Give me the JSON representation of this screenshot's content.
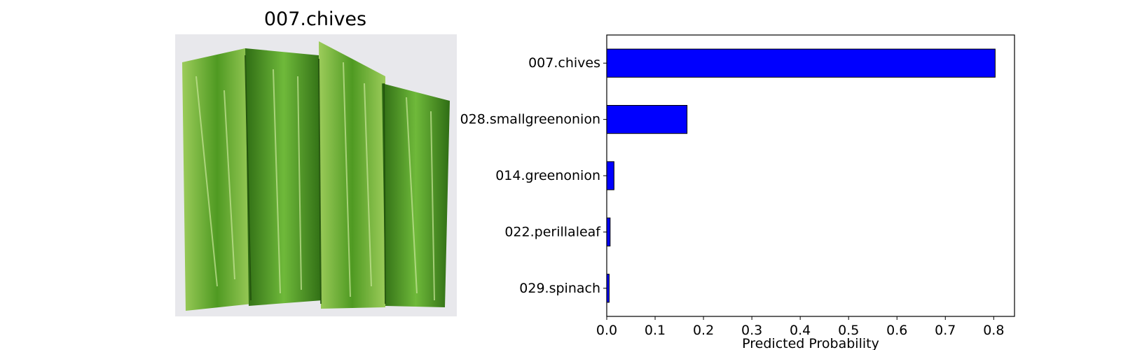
{
  "image_panel": {
    "title": "007.chives",
    "image": "chopped-chives-photo"
  },
  "chart_data": {
    "type": "bar",
    "orientation": "horizontal",
    "categories": [
      "007.chives",
      "028.smallgreenonion",
      "014.greenonion",
      "022.perillaleaf",
      "029.spinach"
    ],
    "values": [
      0.803,
      0.166,
      0.015,
      0.007,
      0.005
    ],
    "xlabel": "Predicted Probability",
    "ylabel": "",
    "title": "",
    "xlim": [
      0,
      0.843
    ],
    "xticks": [
      0.0,
      0.1,
      0.2,
      0.3,
      0.4,
      0.5,
      0.6,
      0.7,
      0.8
    ],
    "xtick_labels": [
      "0.0",
      "0.1",
      "0.2",
      "0.3",
      "0.4",
      "0.5",
      "0.6",
      "0.7",
      "0.8"
    ],
    "bar_color": "#0000ff",
    "edge_color": "#000000",
    "grid": false,
    "legend": "none"
  }
}
